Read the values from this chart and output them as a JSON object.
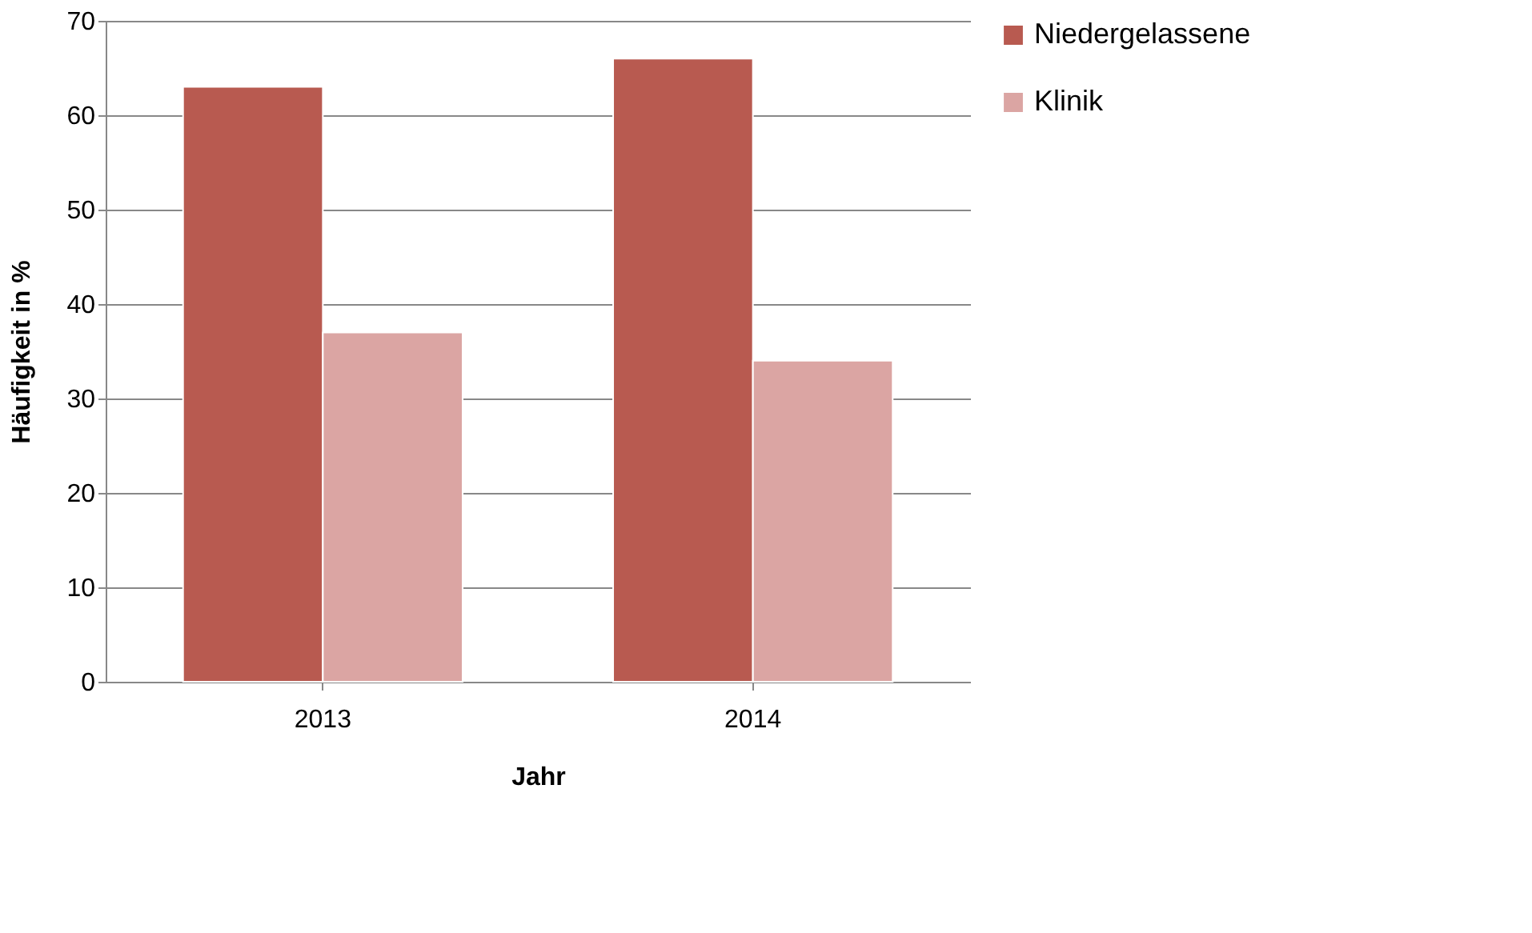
{
  "chart_data": {
    "type": "bar",
    "xlabel": "Jahr",
    "ylabel": "Häufigkeit in %",
    "categories": [
      "2013",
      "2014"
    ],
    "series": [
      {
        "name": "Niedergelassene",
        "color": "#b85a50",
        "values": [
          63,
          66
        ]
      },
      {
        "name": "Klinik",
        "color": "#dba5a3",
        "values": [
          37,
          34
        ]
      }
    ],
    "ylim": [
      0,
      70
    ],
    "yticks": [
      0,
      10,
      20,
      30,
      40,
      50,
      60,
      70
    ],
    "grid": "y",
    "legend": "right"
  }
}
